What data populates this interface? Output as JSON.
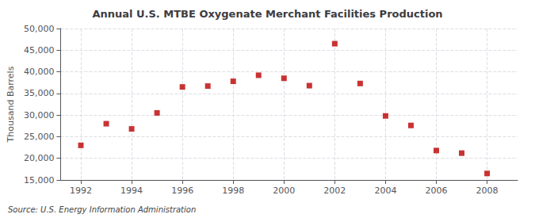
{
  "chart_data": {
    "type": "scatter",
    "title": "Annual U.S. MTBE Oxygenate Merchant Facilities Production",
    "ylabel": "Thousand Barrels",
    "source": "Source: U.S. Energy Information Administration",
    "x": [
      1992,
      1993,
      1994,
      1995,
      1996,
      1997,
      1998,
      1999,
      2000,
      2001,
      2002,
      2003,
      2004,
      2005,
      2006,
      2007,
      2008
    ],
    "values": [
      23000,
      28000,
      26800,
      30500,
      36500,
      36700,
      37800,
      39200,
      38500,
      36800,
      46500,
      37300,
      29800,
      27600,
      21800,
      21200,
      16500
    ],
    "color": "#bb0000",
    "marker": "square",
    "xlim": [
      1991.2,
      2009.2
    ],
    "xticks": [
      1992,
      1994,
      1996,
      1998,
      2000,
      2002,
      2004,
      2006,
      2008
    ],
    "ylim": [
      15000,
      50000
    ],
    "yticks": [
      {
        "value": 15000,
        "label": "15,000"
      },
      {
        "value": 20000,
        "label": "20,000"
      },
      {
        "value": 25000,
        "label": "25,000"
      },
      {
        "value": 30000,
        "label": "30,000"
      },
      {
        "value": 35000,
        "label": "35,000"
      },
      {
        "value": 40000,
        "label": "40,000"
      },
      {
        "value": 45000,
        "label": "45,000"
      },
      {
        "value": 50000,
        "label": "50,000"
      }
    ],
    "grid": true
  }
}
